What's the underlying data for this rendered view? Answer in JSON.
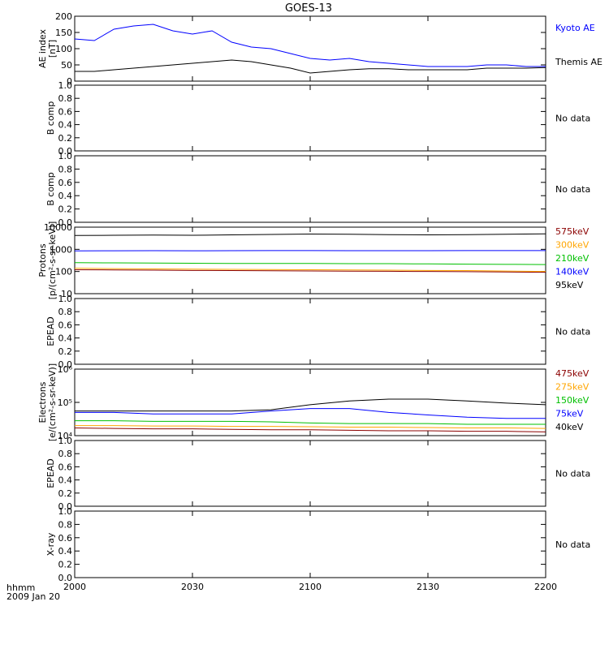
{
  "title": "GOES-13",
  "x_axis": {
    "ticks": [
      "2000",
      "2030",
      "2100",
      "2130",
      "2200"
    ],
    "unit_label": "hhmm",
    "date_label": "2009 Jan 20"
  },
  "panels": [
    {
      "id": "ae",
      "ylabel_lines": [
        "AE index",
        "[nT]"
      ],
      "yticks": [
        "0",
        "50",
        "100",
        "150",
        "200"
      ],
      "legend": [
        {
          "text": "Kyoto AE",
          "color": "#0000ff"
        },
        {
          "text": "Themis AE",
          "color": "#000000"
        }
      ]
    },
    {
      "id": "bcomp1",
      "ylabel_lines": [
        "B comp"
      ],
      "yticks": [
        "0.0",
        "0.2",
        "0.4",
        "0.6",
        "0.8",
        "1.0"
      ],
      "legend": [
        {
          "text": "No data",
          "color": "#000000"
        }
      ]
    },
    {
      "id": "bcomp2",
      "ylabel_lines": [
        "B comp"
      ],
      "yticks": [
        "0.0",
        "0.2",
        "0.4",
        "0.6",
        "0.8",
        "1.0"
      ],
      "legend": [
        {
          "text": "No data",
          "color": "#000000"
        }
      ]
    },
    {
      "id": "protons",
      "ylabel_lines": [
        "Protons",
        "[p/(cm²-s-sr-keV)]"
      ],
      "yticks": [
        "10",
        "100",
        "1000",
        "10000"
      ],
      "legend": [
        {
          "text": "575keV",
          "color": "#8b0000"
        },
        {
          "text": "300keV",
          "color": "#ffa500"
        },
        {
          "text": "210keV",
          "color": "#00c000"
        },
        {
          "text": "140keV",
          "color": "#0000ff"
        },
        {
          "text": "95keV",
          "color": "#000000"
        }
      ]
    },
    {
      "id": "epead1",
      "ylabel_lines": [
        "EPEAD"
      ],
      "yticks": [
        "0.0",
        "0.2",
        "0.4",
        "0.6",
        "0.8",
        "1.0"
      ],
      "legend": [
        {
          "text": "No data",
          "color": "#000000"
        }
      ]
    },
    {
      "id": "electrons",
      "ylabel_lines": [
        "Electrons",
        "[e/(cm²-s-sr-keV)]"
      ],
      "yticks": [
        "10⁴",
        "10⁵",
        "10⁶"
      ],
      "legend": [
        {
          "text": "475keV",
          "color": "#8b0000"
        },
        {
          "text": "275keV",
          "color": "#ffa500"
        },
        {
          "text": "150keV",
          "color": "#00c000"
        },
        {
          "text": "75keV",
          "color": "#0000ff"
        },
        {
          "text": "40keV",
          "color": "#000000"
        }
      ]
    },
    {
      "id": "epead2",
      "ylabel_lines": [
        "EPEAD"
      ],
      "yticks": [
        "0.0",
        "0.2",
        "0.4",
        "0.6",
        "0.8",
        "1.0"
      ],
      "legend": [
        {
          "text": "No data",
          "color": "#000000"
        }
      ]
    },
    {
      "id": "xray",
      "ylabel_lines": [
        "X-ray"
      ],
      "yticks": [
        "0.0",
        "0.2",
        "0.4",
        "0.6",
        "0.8",
        "1.0"
      ],
      "legend": [
        {
          "text": "No data",
          "color": "#000000"
        }
      ]
    }
  ],
  "chart_data": [
    {
      "type": "line",
      "ylabel": "AE index [nT]",
      "ylim": [
        0,
        200
      ],
      "x": [
        "2000",
        "2005",
        "2010",
        "2015",
        "2020",
        "2025",
        "2030",
        "2035",
        "2040",
        "2045",
        "2050",
        "2055",
        "2100",
        "2105",
        "2110",
        "2115",
        "2120",
        "2125",
        "2130",
        "2135",
        "2140",
        "2145",
        "2150",
        "2155",
        "2200"
      ],
      "series": [
        {
          "name": "Kyoto AE",
          "color": "#0000ff",
          "values": [
            130,
            125,
            160,
            170,
            175,
            155,
            145,
            155,
            120,
            105,
            100,
            85,
            70,
            65,
            70,
            60,
            55,
            50,
            45,
            45,
            45,
            50,
            50,
            45,
            45
          ]
        },
        {
          "name": "Themis AE",
          "color": "#000000",
          "values": [
            30,
            30,
            35,
            40,
            45,
            50,
            55,
            60,
            65,
            60,
            50,
            40,
            25,
            30,
            35,
            38,
            38,
            35,
            35,
            35,
            35,
            40,
            40,
            40,
            42
          ]
        }
      ]
    },
    {
      "type": "line",
      "ylabel": "B comp",
      "ylim": [
        0,
        1
      ],
      "series": []
    },
    {
      "type": "line",
      "ylabel": "B comp",
      "ylim": [
        0,
        1
      ],
      "series": []
    },
    {
      "type": "line",
      "ylabel": "Protons [p/(cm²-s-sr-keV)]",
      "yscale": "log",
      "ylim": [
        10,
        10000
      ],
      "x": [
        "2000",
        "2010",
        "2020",
        "2030",
        "2040",
        "2050",
        "2100",
        "2110",
        "2120",
        "2130",
        "2140",
        "2150",
        "2200"
      ],
      "series": [
        {
          "name": "95keV",
          "color": "#000000",
          "values": [
            4200,
            4300,
            4400,
            4300,
            4500,
            4700,
            4900,
            4800,
            4600,
            4500,
            4600,
            4800,
            5000
          ]
        },
        {
          "name": "140keV",
          "color": "#0000ff",
          "values": [
            850,
            860,
            870,
            860,
            870,
            880,
            880,
            870,
            870,
            870,
            880,
            880,
            880
          ]
        },
        {
          "name": "210keV",
          "color": "#00c000",
          "values": [
            250,
            245,
            240,
            235,
            230,
            230,
            230,
            225,
            225,
            220,
            215,
            210,
            205
          ]
        },
        {
          "name": "300keV",
          "color": "#ffa500",
          "values": [
            140,
            135,
            130,
            128,
            125,
            122,
            120,
            118,
            115,
            112,
            110,
            105,
            100
          ]
        },
        {
          "name": "575keV",
          "color": "#8b0000",
          "values": [
            120,
            118,
            115,
            112,
            110,
            108,
            106,
            104,
            102,
            100,
            98,
            95,
            92
          ]
        }
      ]
    },
    {
      "type": "line",
      "ylabel": "EPEAD",
      "ylim": [
        0,
        1
      ],
      "series": []
    },
    {
      "type": "line",
      "ylabel": "Electrons [e/(cm²-s-sr-keV)]",
      "yscale": "log",
      "ylim": [
        10000,
        1000000
      ],
      "x": [
        "2000",
        "2010",
        "2020",
        "2030",
        "2040",
        "2050",
        "2100",
        "2110",
        "2120",
        "2130",
        "2140",
        "2150",
        "2200"
      ],
      "series": [
        {
          "name": "40keV",
          "color": "#000000",
          "values": [
            55000,
            55000,
            55000,
            55000,
            55000,
            60000,
            85000,
            110000,
            125000,
            125000,
            110000,
            95000,
            85000
          ]
        },
        {
          "name": "75keV",
          "color": "#0000ff",
          "values": [
            50000,
            50000,
            45000,
            45000,
            45000,
            55000,
            65000,
            65000,
            50000,
            42000,
            36000,
            33000,
            33000
          ]
        },
        {
          "name": "150keV",
          "color": "#00c000",
          "values": [
            28000,
            28000,
            27000,
            27000,
            27000,
            26000,
            24000,
            23000,
            23000,
            23000,
            22000,
            22000,
            22000
          ]
        },
        {
          "name": "275keV",
          "color": "#ffa500",
          "values": [
            20000,
            20000,
            19500,
            19500,
            19000,
            19000,
            18500,
            18000,
            18000,
            17500,
            17000,
            17000,
            16500
          ]
        },
        {
          "name": "475keV",
          "color": "#8b0000",
          "values": [
            17000,
            16500,
            16000,
            16000,
            15500,
            15000,
            15000,
            14500,
            14000,
            14000,
            13500,
            13500,
            13000
          ]
        }
      ]
    },
    {
      "type": "line",
      "ylabel": "EPEAD",
      "ylim": [
        0,
        1
      ],
      "series": []
    },
    {
      "type": "line",
      "ylabel": "X-ray",
      "ylim": [
        0,
        1
      ],
      "series": []
    }
  ]
}
